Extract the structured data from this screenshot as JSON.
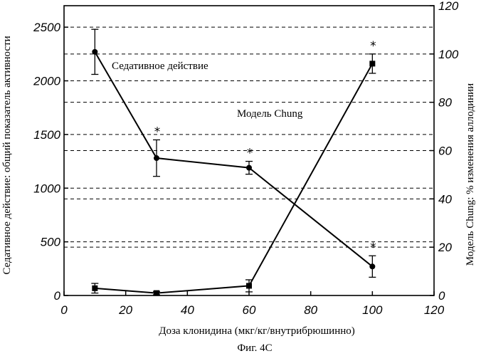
{
  "chart_data": {
    "type": "line",
    "caption": "Фиг. 4С",
    "xlabel": "Доза клонидина (мкг/кг/внутрибрюшинно)",
    "ylabel_left": "Седативное действие: общий показатель активности",
    "ylabel_right": "Модель Chung: % изменения аллодинии",
    "x_ticks": [
      "0",
      "20",
      "40",
      "60",
      "80",
      "100",
      "120"
    ],
    "y_left_ticks": [
      "0",
      "500",
      "1000",
      "1500",
      "2000",
      "2500"
    ],
    "y_right_ticks": [
      "0",
      "20",
      "40",
      "60",
      "80",
      "100",
      "120"
    ],
    "xlim": [
      0,
      120
    ],
    "ylim_left": [
      0,
      2700
    ],
    "ylim_right": [
      0,
      120
    ],
    "series": [
      {
        "name": "Седативное действие",
        "axis": "left",
        "marker": "circle",
        "x": [
          10,
          30,
          60,
          100
        ],
        "y": [
          2270,
          1280,
          1190,
          270
        ],
        "err": [
          210,
          170,
          60,
          100
        ],
        "significant": [
          "",
          "*",
          "*",
          "*"
        ]
      },
      {
        "name": "Модель Chung",
        "axis": "right",
        "marker": "square",
        "x": [
          10,
          30,
          60,
          100
        ],
        "y": [
          3,
          1,
          4,
          96
        ],
        "err": [
          2,
          0.7,
          2.5,
          4
        ],
        "significant": [
          "",
          "",
          "",
          "*"
        ]
      }
    ],
    "gridlines_left": [
      500,
      1000,
      1500,
      2000,
      2500
    ],
    "gridlines_right": [
      20,
      40,
      60,
      80,
      100
    ]
  }
}
